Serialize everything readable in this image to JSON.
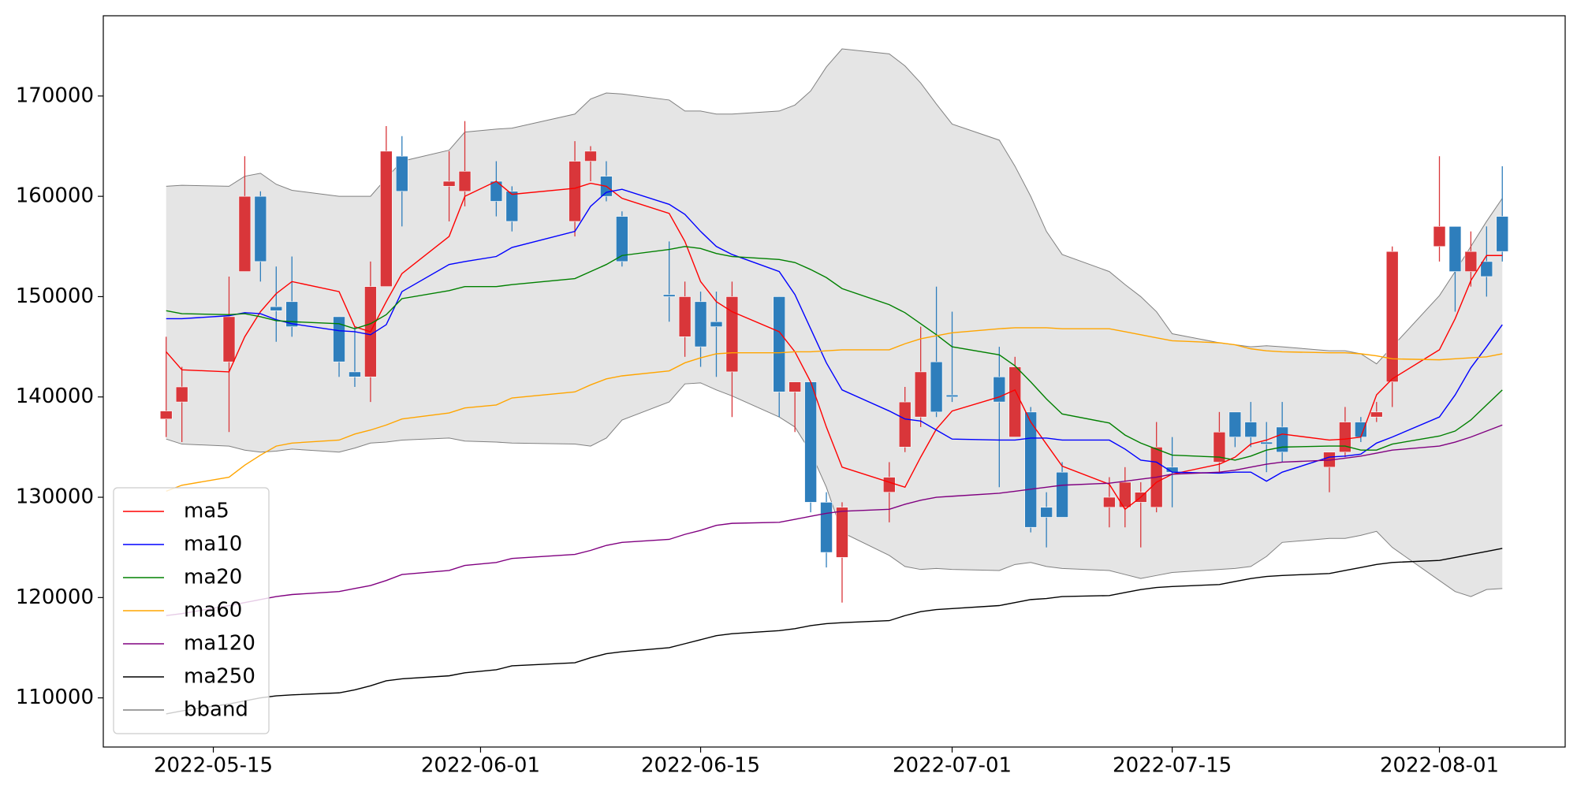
{
  "chart_data": {
    "type": "candlestick",
    "x": [
      "2022-05-12",
      "2022-05-13",
      "2022-05-16",
      "2022-05-17",
      "2022-05-18",
      "2022-05-19",
      "2022-05-20",
      "2022-05-23",
      "2022-05-24",
      "2022-05-25",
      "2022-05-26",
      "2022-05-27",
      "2022-05-30",
      "2022-05-31",
      "2022-06-02",
      "2022-06-03",
      "2022-06-07",
      "2022-06-08",
      "2022-06-09",
      "2022-06-10",
      "2022-06-13",
      "2022-06-14",
      "2022-06-15",
      "2022-06-16",
      "2022-06-17",
      "2022-06-20",
      "2022-06-21",
      "2022-06-22",
      "2022-06-23",
      "2022-06-24",
      "2022-06-27",
      "2022-06-28",
      "2022-06-29",
      "2022-06-30",
      "2022-07-01",
      "2022-07-04",
      "2022-07-05",
      "2022-07-06",
      "2022-07-07",
      "2022-07-08",
      "2022-07-11",
      "2022-07-12",
      "2022-07-13",
      "2022-07-14",
      "2022-07-15",
      "2022-07-18",
      "2022-07-19",
      "2022-07-20",
      "2022-07-21",
      "2022-07-22",
      "2022-07-25",
      "2022-07-26",
      "2022-07-27",
      "2022-07-28",
      "2022-07-29",
      "2022-08-01",
      "2022-08-02",
      "2022-08-03",
      "2022-08-04",
      "2022-08-05"
    ],
    "open": [
      137800,
      139500,
      143500,
      152500,
      160000,
      149000,
      149500,
      148000,
      142500,
      142000,
      151000,
      164000,
      161000,
      160500,
      161500,
      160500,
      157500,
      163500,
      162000,
      158000,
      150200,
      146000,
      149500,
      147500,
      142500,
      150000,
      140500,
      141500,
      129500,
      124000,
      130500,
      135000,
      138000,
      143500,
      140200,
      142000,
      136000,
      138500,
      129000,
      132500,
      129000,
      129000,
      129500,
      129000,
      133000,
      133500,
      138500,
      137500,
      135500,
      137000,
      133000,
      134500,
      137500,
      138000,
      141500,
      155000,
      157000,
      152500,
      153500,
      158000
    ],
    "high": [
      146000,
      143000,
      152000,
      164000,
      160500,
      153000,
      154000,
      148000,
      147000,
      153500,
      167000,
      166000,
      164500,
      167500,
      163500,
      161000,
      165500,
      165000,
      163500,
      158500,
      155500,
      151500,
      150500,
      150500,
      151500,
      150000,
      141500,
      141500,
      130500,
      129500,
      133500,
      141000,
      147000,
      151000,
      148500,
      145000,
      144000,
      139000,
      130500,
      133500,
      132000,
      133000,
      131500,
      137500,
      136000,
      138500,
      138500,
      139500,
      137500,
      139500,
      134500,
      139000,
      138000,
      139500,
      155000,
      164000,
      157000,
      156500,
      157000,
      163000
    ],
    "low": [
      136000,
      135500,
      136500,
      152500,
      151500,
      145500,
      146000,
      142000,
      141000,
      139500,
      151000,
      157000,
      157500,
      159000,
      158000,
      156500,
      156000,
      161500,
      159500,
      153000,
      147500,
      144000,
      143000,
      142000,
      138000,
      138000,
      136500,
      128500,
      123000,
      119500,
      127500,
      134500,
      137000,
      138000,
      139500,
      131000,
      136000,
      126500,
      125000,
      128000,
      127000,
      127000,
      125000,
      128500,
      129000,
      132500,
      135000,
      135000,
      132500,
      133500,
      130500,
      134000,
      135500,
      137500,
      139000,
      153500,
      148500,
      151000,
      150000,
      153500
    ],
    "close": [
      138600,
      141000,
      148000,
      160000,
      153500,
      148600,
      147000,
      143500,
      142000,
      151000,
      164500,
      160500,
      161500,
      162500,
      159500,
      157500,
      163500,
      164500,
      160000,
      153500,
      150000,
      150000,
      145000,
      147000,
      150000,
      140500,
      141500,
      129500,
      124500,
      129000,
      132000,
      139500,
      142500,
      138500,
      140000,
      139500,
      143000,
      127000,
      128000,
      128000,
      130000,
      131500,
      130500,
      135000,
      132500,
      136500,
      136000,
      136000,
      135300,
      134500,
      134500,
      137500,
      136000,
      138500,
      154500,
      157000,
      152500,
      154500,
      152000,
      154500
    ],
    "up_color": "#d9363a",
    "down_color": "#2e7ebc",
    "series": [
      {
        "name": "ma5",
        "color": "red",
        "values": [
          144500,
          142700,
          142500,
          146000,
          148500,
          150300,
          151500,
          150500,
          147000,
          146500,
          149500,
          152300,
          156000,
          160000,
          161500,
          160200,
          160800,
          161300,
          161000,
          159800,
          158300,
          155500,
          151500,
          149500,
          148500,
          146500,
          144500,
          141500,
          137000,
          133000,
          131500,
          131000,
          134000,
          136800,
          138600,
          140000,
          140700,
          137500,
          135300,
          133100,
          131300,
          128800,
          130000,
          131500,
          132300,
          133300,
          134000,
          135300,
          135700,
          136300,
          135700,
          135800,
          136000,
          140200,
          141800,
          144700,
          147800,
          151600,
          154100,
          154100
        ]
      },
      {
        "name": "ma10",
        "color": "blue",
        "values": [
          147800,
          147800,
          148100,
          148400,
          148300,
          147700,
          147300,
          146600,
          146500,
          146200,
          147200,
          150500,
          153200,
          153500,
          154000,
          154900,
          156500,
          159000,
          160400,
          160700,
          159200,
          158200,
          156500,
          155000,
          154200,
          152500,
          150200,
          146800,
          143400,
          140700,
          138600,
          137800,
          137600,
          136700,
          135800,
          135700,
          135700,
          135900,
          135900,
          135700,
          135700,
          134800,
          133700,
          133500,
          132500,
          132400,
          132500,
          132500,
          131600,
          132500,
          134000,
          134100,
          134300,
          135400,
          136000,
          138000,
          140200,
          142900,
          145000,
          147200
        ]
      },
      {
        "name": "ma20",
        "color": "green",
        "values": [
          148600,
          148300,
          148200,
          148300,
          148000,
          147600,
          147500,
          147300,
          146800,
          147300,
          148200,
          149800,
          150600,
          151000,
          151000,
          151200,
          151800,
          152500,
          153200,
          154100,
          154700,
          155000,
          154800,
          154300,
          154000,
          153700,
          153400,
          152700,
          151900,
          150800,
          149200,
          148400,
          147300,
          146200,
          145000,
          144200,
          143100,
          141500,
          139800,
          138300,
          137400,
          136200,
          135400,
          134800,
          134200,
          134000,
          133700,
          134100,
          134700,
          135000,
          135100,
          135100,
          134700,
          134700,
          135300,
          136100,
          136600,
          137700,
          139200,
          140700
        ]
      },
      {
        "name": "ma60",
        "color": "orange",
        "values": [
          130600,
          131200,
          132000,
          133200,
          134200,
          135100,
          135400,
          135700,
          136300,
          136700,
          137200,
          137800,
          138400,
          138900,
          139200,
          139900,
          140500,
          141200,
          141800,
          142100,
          142600,
          143400,
          143900,
          144300,
          144400,
          144400,
          144500,
          144500,
          144600,
          144700,
          144700,
          145300,
          145800,
          146100,
          146400,
          146800,
          146900,
          146900,
          146900,
          146800,
          146800,
          146500,
          146200,
          145900,
          145600,
          145400,
          145200,
          144800,
          144600,
          144500,
          144400,
          144400,
          144300,
          144100,
          143800,
          143700,
          143800,
          143900,
          144000,
          144300
        ]
      },
      {
        "name": "ma120",
        "color": "purple",
        "values": [
          118200,
          118400,
          119200,
          119500,
          119800,
          120100,
          120300,
          120600,
          120900,
          121200,
          121700,
          122300,
          122700,
          123200,
          123500,
          123900,
          124300,
          124700,
          125200,
          125500,
          125800,
          126300,
          126700,
          127200,
          127400,
          127500,
          127800,
          128100,
          128400,
          128600,
          128800,
          129300,
          129700,
          130000,
          130100,
          130400,
          130600,
          130800,
          131000,
          131200,
          131400,
          131600,
          131800,
          132000,
          132300,
          132500,
          132700,
          133000,
          133300,
          133500,
          133700,
          133900,
          134100,
          134400,
          134700,
          135100,
          135500,
          136000,
          136600,
          137200
        ]
      },
      {
        "name": "ma250",
        "color": "black",
        "values": [
          108400,
          108700,
          109400,
          109700,
          110000,
          110200,
          110300,
          110500,
          110800,
          111200,
          111700,
          111900,
          112200,
          112500,
          112800,
          113200,
          113500,
          114000,
          114400,
          114600,
          115000,
          115400,
          115800,
          116200,
          116400,
          116700,
          116900,
          117200,
          117400,
          117500,
          117700,
          118200,
          118600,
          118800,
          118900,
          119200,
          119500,
          119800,
          119900,
          120100,
          120200,
          120500,
          120800,
          121000,
          121100,
          121300,
          121600,
          121900,
          122100,
          122200,
          122400,
          122700,
          123000,
          123300,
          123500,
          123700,
          124000,
          124300,
          124600,
          124900
        ]
      }
    ],
    "band": {
      "name": "bband",
      "color": "gray",
      "fill": "#e5e5e5",
      "upper": [
        161000,
        161100,
        161000,
        162000,
        162300,
        161200,
        160600,
        160000,
        160000,
        160000,
        161800,
        163500,
        164600,
        166400,
        166700,
        166800,
        168200,
        169700,
        170300,
        170200,
        169600,
        168500,
        168500,
        168200,
        168200,
        168500,
        169100,
        170500,
        172900,
        174700,
        174200,
        173000,
        171300,
        169200,
        167200,
        165600,
        163000,
        160000,
        156500,
        154200,
        152500,
        151200,
        150000,
        148500,
        146300,
        145400,
        145200,
        145000,
        145100,
        145000,
        144600,
        144600,
        144300,
        143300,
        145000,
        150100,
        152500,
        155000,
        157500,
        159800
      ],
      "lower": [
        135800,
        135300,
        135100,
        134700,
        134500,
        134600,
        134800,
        134500,
        134900,
        135400,
        135500,
        135700,
        135900,
        135600,
        135500,
        135400,
        135300,
        135100,
        135900,
        137700,
        139500,
        141300,
        141400,
        140700,
        140100,
        138000,
        137000,
        134500,
        131000,
        126500,
        124200,
        123100,
        122800,
        122900,
        122800,
        122700,
        123300,
        123500,
        123100,
        122900,
        122700,
        122300,
        121900,
        122200,
        122500,
        122800,
        122900,
        123100,
        124100,
        125500,
        125900,
        125900,
        126200,
        126600,
        125000,
        121700,
        120600,
        120100,
        120800,
        120900
      ]
    },
    "xlim": [
      "2022-05-08",
      "2022-08-09"
    ],
    "xticks": [
      "2022-05-15",
      "2022-06-01",
      "2022-06-15",
      "2022-07-01",
      "2022-07-15",
      "2022-08-01"
    ],
    "ylim": [
      105100,
      178000
    ],
    "yticks": [
      110000,
      120000,
      130000,
      140000,
      150000,
      160000,
      170000
    ],
    "legend": "lower left"
  }
}
